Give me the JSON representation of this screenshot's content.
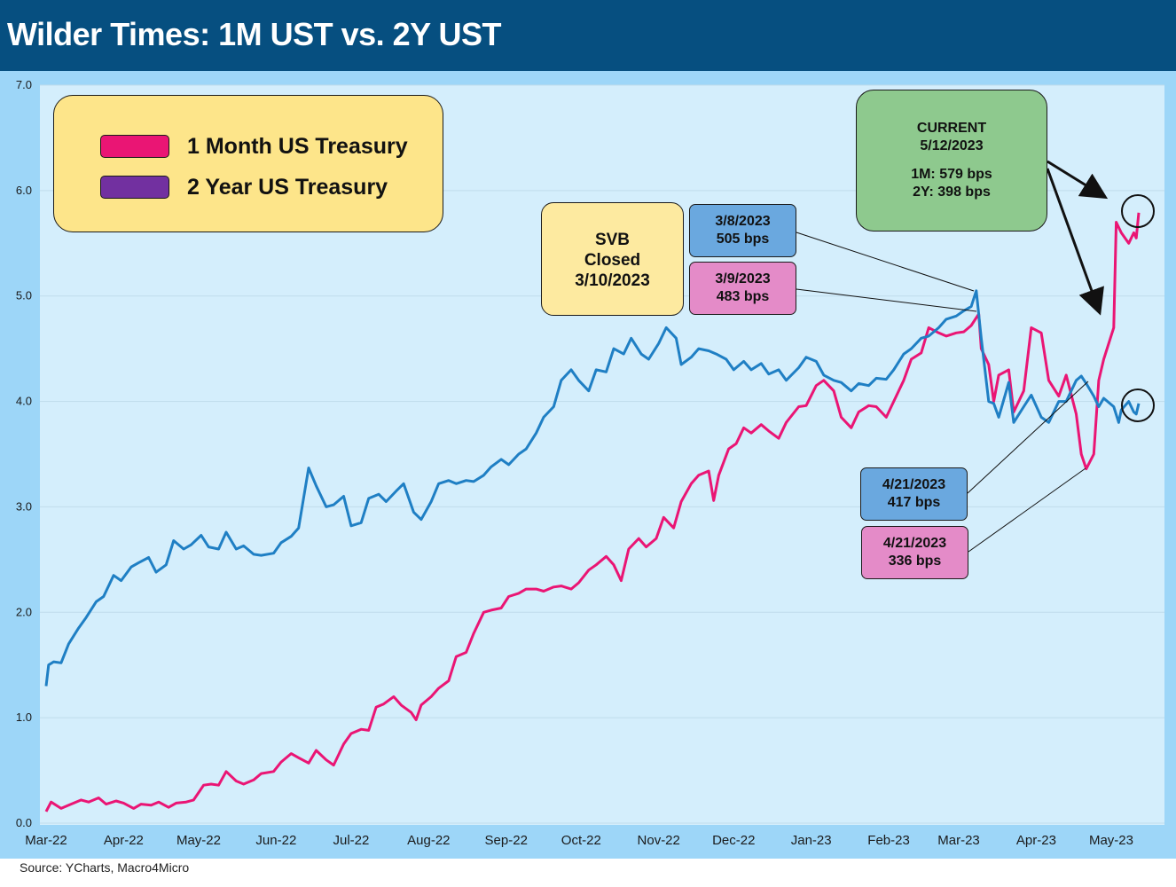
{
  "title": "Wilder Times: 1M UST vs. 2Y UST",
  "source": "Source: YCharts, Macro4Micro",
  "legend": {
    "items": [
      {
        "label": "1 Month US Treasury",
        "color": "#ea1574"
      },
      {
        "label": "2 Year US Treasury",
        "color": "#7230a0"
      }
    ]
  },
  "annotations": {
    "svb": {
      "line1": "SVB",
      "line2": "Closed",
      "line3": "3/10/2023"
    },
    "current": {
      "line1": "CURRENT",
      "line2": "5/12/2023",
      "line3": "1M: 579 bps",
      "line4": "2Y: 398 bps"
    },
    "mar8": {
      "date": "3/8/2023",
      "value": "505 bps"
    },
    "mar9": {
      "date": "3/9/2023",
      "value": "483 bps"
    },
    "apr21_blue": {
      "date": "4/21/2023",
      "value": "417 bps"
    },
    "apr21_pink": {
      "date": "4/21/2023",
      "value": "336 bps"
    }
  },
  "colors": {
    "one_month_line": "#ea1574",
    "two_year_line": "#1f7fc4",
    "plot_bg": "#d4eefc",
    "chart_bg": "#9dd6f8",
    "title_bar": "#064f80"
  },
  "chart_data": {
    "type": "line",
    "title": "Wilder Times: 1M UST vs. 2Y UST",
    "ylim": [
      0,
      7
    ],
    "yticks": [
      "0.0",
      "1.0",
      "2.0",
      "3.0",
      "4.0",
      "5.0",
      "6.0",
      "7.0"
    ],
    "xticks": [
      "Mar-22",
      "Apr-22",
      "May-22",
      "Jun-22",
      "Jul-22",
      "Aug-22",
      "Sep-22",
      "Oct-22",
      "Nov-22",
      "Dec-22",
      "Jan-23",
      "Feb-23",
      "Mar-23",
      "Apr-23",
      "May-23"
    ],
    "grid": true,
    "series": [
      {
        "name": "1 Month US Treasury",
        "points": [
          [
            "2022-03-01",
            0.11
          ],
          [
            "2022-03-03",
            0.2
          ],
          [
            "2022-03-07",
            0.14
          ],
          [
            "2022-03-10",
            0.17
          ],
          [
            "2022-03-15",
            0.22
          ],
          [
            "2022-03-18",
            0.2
          ],
          [
            "2022-03-22",
            0.24
          ],
          [
            "2022-03-25",
            0.18
          ],
          [
            "2022-03-29",
            0.21
          ],
          [
            "2022-04-01",
            0.19
          ],
          [
            "2022-04-05",
            0.14
          ],
          [
            "2022-04-08",
            0.18
          ],
          [
            "2022-04-12",
            0.17
          ],
          [
            "2022-04-15",
            0.2
          ],
          [
            "2022-04-19",
            0.15
          ],
          [
            "2022-04-22",
            0.19
          ],
          [
            "2022-04-26",
            0.2
          ],
          [
            "2022-04-29",
            0.22
          ],
          [
            "2022-05-03",
            0.36
          ],
          [
            "2022-05-06",
            0.37
          ],
          [
            "2022-05-09",
            0.36
          ],
          [
            "2022-05-12",
            0.49
          ],
          [
            "2022-05-16",
            0.4
          ],
          [
            "2022-05-19",
            0.37
          ],
          [
            "2022-05-23",
            0.41
          ],
          [
            "2022-05-26",
            0.47
          ],
          [
            "2022-05-31",
            0.49
          ],
          [
            "2022-06-03",
            0.58
          ],
          [
            "2022-06-07",
            0.66
          ],
          [
            "2022-06-10",
            0.62
          ],
          [
            "2022-06-14",
            0.57
          ],
          [
            "2022-06-17",
            0.69
          ],
          [
            "2022-06-21",
            0.6
          ],
          [
            "2022-06-24",
            0.55
          ],
          [
            "2022-06-28",
            0.75
          ],
          [
            "2022-07-01",
            0.85
          ],
          [
            "2022-07-05",
            0.89
          ],
          [
            "2022-07-08",
            0.88
          ],
          [
            "2022-07-11",
            1.1
          ],
          [
            "2022-07-14",
            1.13
          ],
          [
            "2022-07-18",
            1.2
          ],
          [
            "2022-07-21",
            1.12
          ],
          [
            "2022-07-25",
            1.05
          ],
          [
            "2022-07-27",
            0.98
          ],
          [
            "2022-07-29",
            1.12
          ],
          [
            "2022-08-02",
            1.2
          ],
          [
            "2022-08-05",
            1.28
          ],
          [
            "2022-08-09",
            1.35
          ],
          [
            "2022-08-12",
            1.58
          ],
          [
            "2022-08-16",
            1.62
          ],
          [
            "2022-08-19",
            1.8
          ],
          [
            "2022-08-23",
            2.0
          ],
          [
            "2022-08-26",
            2.02
          ],
          [
            "2022-08-30",
            2.04
          ],
          [
            "2022-09-02",
            2.15
          ],
          [
            "2022-09-06",
            2.18
          ],
          [
            "2022-09-09",
            2.22
          ],
          [
            "2022-09-13",
            2.22
          ],
          [
            "2022-09-16",
            2.2
          ],
          [
            "2022-09-20",
            2.24
          ],
          [
            "2022-09-23",
            2.25
          ],
          [
            "2022-09-27",
            2.22
          ],
          [
            "2022-09-30",
            2.28
          ],
          [
            "2022-10-04",
            2.4
          ],
          [
            "2022-10-07",
            2.45
          ],
          [
            "2022-10-11",
            2.53
          ],
          [
            "2022-10-14",
            2.45
          ],
          [
            "2022-10-17",
            2.3
          ],
          [
            "2022-10-20",
            2.6
          ],
          [
            "2022-10-24",
            2.7
          ],
          [
            "2022-10-27",
            2.62
          ],
          [
            "2022-10-31",
            2.7
          ],
          [
            "2022-11-03",
            2.9
          ],
          [
            "2022-11-07",
            2.8
          ],
          [
            "2022-11-10",
            3.05
          ],
          [
            "2022-11-14",
            3.22
          ],
          [
            "2022-11-17",
            3.3
          ],
          [
            "2022-11-21",
            3.34
          ],
          [
            "2022-11-23",
            3.06
          ],
          [
            "2022-11-25",
            3.3
          ],
          [
            "2022-11-29",
            3.55
          ],
          [
            "2022-12-02",
            3.6
          ],
          [
            "2022-12-05",
            3.75
          ],
          [
            "2022-12-08",
            3.7
          ],
          [
            "2022-12-12",
            3.78
          ],
          [
            "2022-12-15",
            3.72
          ],
          [
            "2022-12-19",
            3.65
          ],
          [
            "2022-12-22",
            3.8
          ],
          [
            "2022-12-27",
            3.95
          ],
          [
            "2022-12-30",
            3.96
          ],
          [
            "2023-01-03",
            4.15
          ],
          [
            "2023-01-06",
            4.2
          ],
          [
            "2023-01-10",
            4.1
          ],
          [
            "2023-01-13",
            3.85
          ],
          [
            "2023-01-17",
            3.75
          ],
          [
            "2023-01-20",
            3.9
          ],
          [
            "2023-01-24",
            3.96
          ],
          [
            "2023-01-27",
            3.95
          ],
          [
            "2023-01-31",
            3.85
          ],
          [
            "2023-02-03",
            4.0
          ],
          [
            "2023-02-07",
            4.2
          ],
          [
            "2023-02-10",
            4.4
          ],
          [
            "2023-02-14",
            4.46
          ],
          [
            "2023-02-17",
            4.7
          ],
          [
            "2023-02-21",
            4.65
          ],
          [
            "2023-02-24",
            4.62
          ],
          [
            "2023-02-28",
            4.65
          ],
          [
            "2023-03-03",
            4.66
          ],
          [
            "2023-03-06",
            4.72
          ],
          [
            "2023-03-09",
            4.83
          ],
          [
            "2023-03-10",
            4.5
          ],
          [
            "2023-03-13",
            4.35
          ],
          [
            "2023-03-15",
            4.0
          ],
          [
            "2023-03-17",
            4.25
          ],
          [
            "2023-03-21",
            4.3
          ],
          [
            "2023-03-23",
            3.9
          ],
          [
            "2023-03-27",
            4.1
          ],
          [
            "2023-03-30",
            4.7
          ],
          [
            "2023-04-03",
            4.65
          ],
          [
            "2023-04-06",
            4.2
          ],
          [
            "2023-04-10",
            4.05
          ],
          [
            "2023-04-13",
            4.25
          ],
          [
            "2023-04-17",
            3.88
          ],
          [
            "2023-04-19",
            3.5
          ],
          [
            "2023-04-21",
            3.36
          ],
          [
            "2023-04-24",
            3.5
          ],
          [
            "2023-04-26",
            4.2
          ],
          [
            "2023-04-28",
            4.4
          ],
          [
            "2023-05-02",
            4.7
          ],
          [
            "2023-05-03",
            5.7
          ],
          [
            "2023-05-05",
            5.6
          ],
          [
            "2023-05-08",
            5.5
          ],
          [
            "2023-05-10",
            5.6
          ],
          [
            "2023-05-11",
            5.55
          ],
          [
            "2023-05-12",
            5.79
          ]
        ]
      },
      {
        "name": "2 Year US Treasury",
        "points": [
          [
            "2022-03-01",
            1.3
          ],
          [
            "2022-03-02",
            1.5
          ],
          [
            "2022-03-04",
            1.53
          ],
          [
            "2022-03-07",
            1.52
          ],
          [
            "2022-03-10",
            1.7
          ],
          [
            "2022-03-14",
            1.85
          ],
          [
            "2022-03-17",
            1.95
          ],
          [
            "2022-03-21",
            2.1
          ],
          [
            "2022-03-24",
            2.15
          ],
          [
            "2022-03-28",
            2.35
          ],
          [
            "2022-03-31",
            2.3
          ],
          [
            "2022-04-04",
            2.43
          ],
          [
            "2022-04-07",
            2.47
          ],
          [
            "2022-04-11",
            2.52
          ],
          [
            "2022-04-14",
            2.38
          ],
          [
            "2022-04-18",
            2.45
          ],
          [
            "2022-04-21",
            2.68
          ],
          [
            "2022-04-25",
            2.6
          ],
          [
            "2022-04-28",
            2.64
          ],
          [
            "2022-05-02",
            2.73
          ],
          [
            "2022-05-05",
            2.62
          ],
          [
            "2022-05-09",
            2.6
          ],
          [
            "2022-05-12",
            2.76
          ],
          [
            "2022-05-16",
            2.6
          ],
          [
            "2022-05-19",
            2.63
          ],
          [
            "2022-05-23",
            2.55
          ],
          [
            "2022-05-26",
            2.54
          ],
          [
            "2022-05-31",
            2.56
          ],
          [
            "2022-06-03",
            2.66
          ],
          [
            "2022-06-07",
            2.72
          ],
          [
            "2022-06-10",
            2.8
          ],
          [
            "2022-06-14",
            3.37
          ],
          [
            "2022-06-17",
            3.2
          ],
          [
            "2022-06-21",
            3.0
          ],
          [
            "2022-06-24",
            3.02
          ],
          [
            "2022-06-28",
            3.1
          ],
          [
            "2022-07-01",
            2.82
          ],
          [
            "2022-07-05",
            2.85
          ],
          [
            "2022-07-08",
            3.08
          ],
          [
            "2022-07-12",
            3.12
          ],
          [
            "2022-07-15",
            3.05
          ],
          [
            "2022-07-19",
            3.15
          ],
          [
            "2022-07-22",
            3.22
          ],
          [
            "2022-07-26",
            2.95
          ],
          [
            "2022-07-29",
            2.88
          ],
          [
            "2022-08-02",
            3.05
          ],
          [
            "2022-08-05",
            3.22
          ],
          [
            "2022-08-09",
            3.25
          ],
          [
            "2022-08-12",
            3.22
          ],
          [
            "2022-08-16",
            3.25
          ],
          [
            "2022-08-19",
            3.24
          ],
          [
            "2022-08-23",
            3.3
          ],
          [
            "2022-08-26",
            3.38
          ],
          [
            "2022-08-30",
            3.45
          ],
          [
            "2022-09-02",
            3.4
          ],
          [
            "2022-09-06",
            3.5
          ],
          [
            "2022-09-09",
            3.55
          ],
          [
            "2022-09-13",
            3.7
          ],
          [
            "2022-09-16",
            3.85
          ],
          [
            "2022-09-20",
            3.95
          ],
          [
            "2022-09-23",
            4.2
          ],
          [
            "2022-09-27",
            4.3
          ],
          [
            "2022-09-30",
            4.2
          ],
          [
            "2022-10-04",
            4.1
          ],
          [
            "2022-10-07",
            4.3
          ],
          [
            "2022-10-11",
            4.28
          ],
          [
            "2022-10-14",
            4.5
          ],
          [
            "2022-10-18",
            4.45
          ],
          [
            "2022-10-21",
            4.6
          ],
          [
            "2022-10-25",
            4.45
          ],
          [
            "2022-10-28",
            4.4
          ],
          [
            "2022-11-01",
            4.55
          ],
          [
            "2022-11-04",
            4.7
          ],
          [
            "2022-11-08",
            4.6
          ],
          [
            "2022-11-10",
            4.35
          ],
          [
            "2022-11-14",
            4.42
          ],
          [
            "2022-11-17",
            4.5
          ],
          [
            "2022-11-21",
            4.48
          ],
          [
            "2022-11-24",
            4.45
          ],
          [
            "2022-11-28",
            4.4
          ],
          [
            "2022-12-01",
            4.3
          ],
          [
            "2022-12-05",
            4.38
          ],
          [
            "2022-12-08",
            4.3
          ],
          [
            "2022-12-12",
            4.36
          ],
          [
            "2022-12-15",
            4.26
          ],
          [
            "2022-12-19",
            4.3
          ],
          [
            "2022-12-22",
            4.2
          ],
          [
            "2022-12-27",
            4.32
          ],
          [
            "2022-12-30",
            4.42
          ],
          [
            "2023-01-03",
            4.38
          ],
          [
            "2023-01-06",
            4.25
          ],
          [
            "2023-01-10",
            4.2
          ],
          [
            "2023-01-13",
            4.18
          ],
          [
            "2023-01-17",
            4.1
          ],
          [
            "2023-01-20",
            4.17
          ],
          [
            "2023-01-24",
            4.15
          ],
          [
            "2023-01-27",
            4.22
          ],
          [
            "2023-01-31",
            4.21
          ],
          [
            "2023-02-03",
            4.3
          ],
          [
            "2023-02-07",
            4.45
          ],
          [
            "2023-02-10",
            4.5
          ],
          [
            "2023-02-14",
            4.6
          ],
          [
            "2023-02-17",
            4.62
          ],
          [
            "2023-02-21",
            4.7
          ],
          [
            "2023-02-24",
            4.78
          ],
          [
            "2023-02-28",
            4.81
          ],
          [
            "2023-03-03",
            4.86
          ],
          [
            "2023-03-06",
            4.9
          ],
          [
            "2023-03-08",
            5.05
          ],
          [
            "2023-03-10",
            4.6
          ],
          [
            "2023-03-13",
            4.0
          ],
          [
            "2023-03-15",
            3.98
          ],
          [
            "2023-03-17",
            3.85
          ],
          [
            "2023-03-21",
            4.18
          ],
          [
            "2023-03-23",
            3.8
          ],
          [
            "2023-03-27",
            3.95
          ],
          [
            "2023-03-30",
            4.06
          ],
          [
            "2023-04-03",
            3.85
          ],
          [
            "2023-04-06",
            3.8
          ],
          [
            "2023-04-10",
            4.0
          ],
          [
            "2023-04-13",
            4.0
          ],
          [
            "2023-04-17",
            4.2
          ],
          [
            "2023-04-19",
            4.24
          ],
          [
            "2023-04-21",
            4.17
          ],
          [
            "2023-04-24",
            4.05
          ],
          [
            "2023-04-26",
            3.95
          ],
          [
            "2023-04-28",
            4.03
          ],
          [
            "2023-05-02",
            3.95
          ],
          [
            "2023-05-04",
            3.8
          ],
          [
            "2023-05-05",
            3.92
          ],
          [
            "2023-05-08",
            4.0
          ],
          [
            "2023-05-10",
            3.9
          ],
          [
            "2023-05-11",
            3.88
          ],
          [
            "2023-05-12",
            3.98
          ]
        ]
      }
    ]
  }
}
